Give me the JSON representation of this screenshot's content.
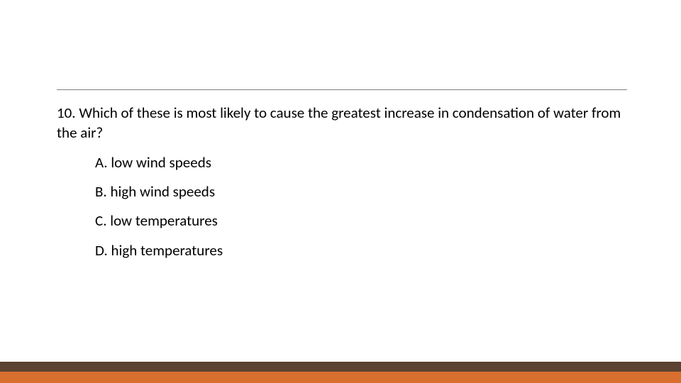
{
  "question": {
    "number": "10.",
    "text": "Which of these is most likely to cause the greatest increase in condensation of water from the air?"
  },
  "options": [
    {
      "letter": "A.",
      "text": "low wind speeds"
    },
    {
      "letter": "B.",
      "text": "high wind speeds"
    },
    {
      "letter": "C.",
      "text": "low temperatures"
    },
    {
      "letter": "D.",
      "text": "high temperatures"
    }
  ],
  "style": {
    "background_color": "#ffffff",
    "text_color": "#000000",
    "divider_color": "#808080",
    "footer_top_color": "#5c4232",
    "footer_bottom_color": "#d96f2f",
    "question_fontsize": 21,
    "option_fontsize": 21
  }
}
